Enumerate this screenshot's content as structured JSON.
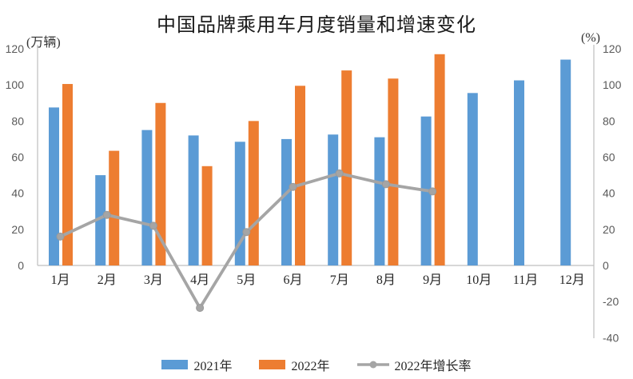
{
  "title": "中国品牌乘用车月度销量和增速变化",
  "colors": {
    "series_2021": "#5B9BD5",
    "series_2022": "#ED7D31",
    "growth_line": "#A5A5A5",
    "negative_tick_label": "#E00000",
    "tick_label": "#595959",
    "axis_line": "#BFBFBF",
    "text": "#262626"
  },
  "chart_data": {
    "type": "bar",
    "subtype": "grouped bars with line on secondary axis",
    "title": "中国品牌乘用车月度销量和增速变化",
    "categories": [
      "1月",
      "2月",
      "3月",
      "4月",
      "5月",
      "6月",
      "7月",
      "8月",
      "9月",
      "10月",
      "11月",
      "12月"
    ],
    "series": [
      {
        "name": "2021年",
        "type": "bar",
        "axis": "left",
        "values": [
          87.5,
          50,
          75,
          72,
          68.5,
          70,
          72.5,
          71,
          82.5,
          95.5,
          102.5,
          114
        ]
      },
      {
        "name": "2022年",
        "type": "bar",
        "axis": "left",
        "values": [
          100.5,
          63.5,
          90,
          55,
          80,
          99.5,
          108,
          103.5,
          117,
          null,
          null,
          null
        ]
      },
      {
        "name": "2022年增长率",
        "type": "line",
        "axis": "right",
        "values": [
          16,
          28,
          22,
          -23.5,
          18.5,
          43.5,
          51,
          45,
          41,
          null,
          null,
          null
        ]
      }
    ],
    "left_axis": {
      "unit": "(万辆)",
      "min": 0,
      "max": 120,
      "step": 20,
      "ticks": [
        0,
        20,
        40,
        60,
        80,
        100,
        120
      ]
    },
    "right_axis": {
      "unit": "(%)",
      "min": -40,
      "max": 120,
      "step": 20,
      "ticks": [
        -40,
        -20,
        0,
        20,
        40,
        60,
        80,
        100,
        120
      ]
    },
    "grid": false,
    "legend_position": "bottom"
  }
}
